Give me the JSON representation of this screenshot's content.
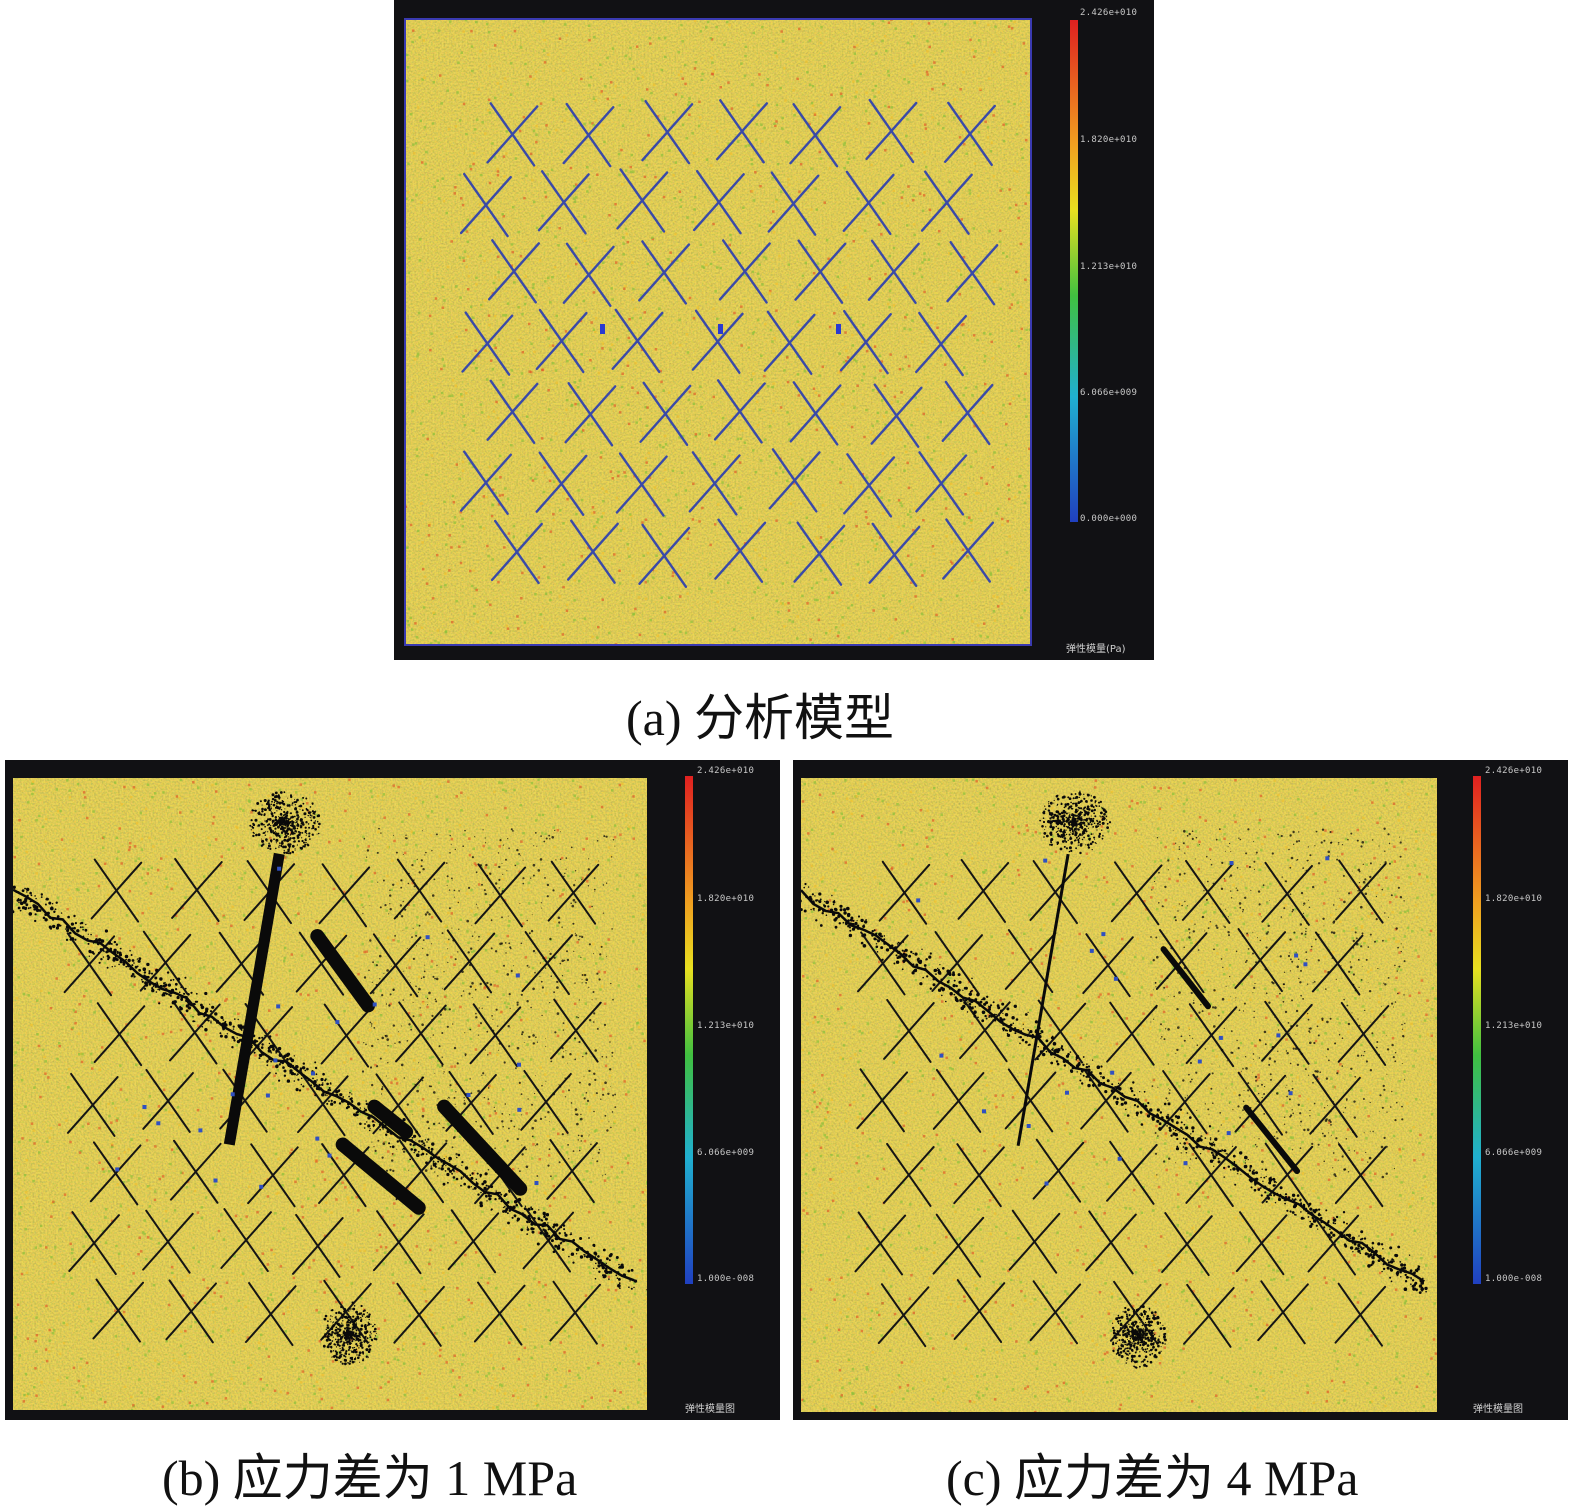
{
  "panels": [
    {
      "id": "a",
      "caption": "(a) 分析模型",
      "colorbar": {
        "ticks": [
          "2.426e+010",
          "1.820e+010",
          "1.213e+010",
          "6.066e+009",
          "0.000e+000"
        ],
        "unit_label": "弹性模量(Pa)"
      },
      "pattern": "model"
    },
    {
      "id": "b",
      "caption": "(b) 应力差为 1 MPa",
      "colorbar": {
        "ticks": [
          "2.426e+010",
          "1.820e+010",
          "1.213e+010",
          "6.066e+009",
          "1.000e-008"
        ],
        "unit_label": "弹性模量图"
      },
      "pattern": "fractured_1MPa"
    },
    {
      "id": "c",
      "caption": "(c) 应力差为 4 MPa",
      "colorbar": {
        "ticks": [
          "2.426e+010",
          "1.820e+010",
          "1.213e+010",
          "6.066e+009",
          "1.000e-008"
        ],
        "unit_label": "弹性模量图"
      },
      "pattern": "fractured_4MPa"
    }
  ],
  "colors": {
    "background_field": "#d4a93a",
    "fracture_model": "#3a4aa8",
    "fracture_damage": "#0a0a0a",
    "panel_frame": "#111114"
  }
}
